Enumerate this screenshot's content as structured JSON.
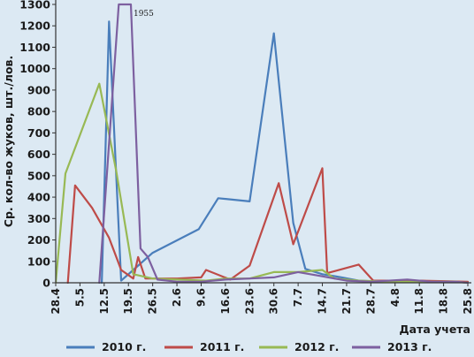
{
  "chart_data": {
    "type": "line",
    "categories": [
      "28.4",
      "5.5",
      "12.5",
      "19.5",
      "26.5",
      "2.6",
      "9.6",
      "16.6",
      "23.6",
      "30.6",
      "7.7",
      "14.7",
      "21.7",
      "28.7",
      "4.8",
      "11.8",
      "18.8",
      "25.8"
    ],
    "xlabel": "Дата учета",
    "ylabel": "Ср. кол-во жуков, шт./лов.",
    "ylim": [
      0,
      1300
    ],
    "yticks": [
      0,
      100,
      200,
      300,
      400,
      500,
      600,
      700,
      800,
      900,
      1000,
      1100,
      1200,
      1300
    ],
    "grid": false,
    "legend_position": "bottom",
    "annotations": [
      {
        "text": "1955",
        "x": 3.1,
        "y": 1250
      }
    ],
    "series": [
      {
        "name": "2010 г.",
        "color": "#4a7ebb",
        "points": [
          [
            1.9,
            0
          ],
          [
            2.2,
            1220
          ],
          [
            2.7,
            10
          ],
          [
            3.2,
            60
          ],
          [
            4.0,
            140
          ],
          [
            5.9,
            250
          ],
          [
            6.7,
            395
          ],
          [
            8.0,
            380
          ],
          [
            9.0,
            1165
          ],
          [
            9.8,
            280
          ],
          [
            10.3,
            65
          ],
          [
            11.0,
            40
          ],
          [
            11.8,
            25
          ],
          [
            12.5,
            10
          ],
          [
            13.5,
            5
          ],
          [
            14.3,
            5
          ],
          [
            15.0,
            10
          ],
          [
            15.7,
            5
          ],
          [
            16.5,
            5
          ]
        ]
      },
      {
        "name": "2011 г.",
        "color": "#be4b48",
        "points": [
          [
            0.5,
            0
          ],
          [
            0.8,
            455
          ],
          [
            1.5,
            350
          ],
          [
            2.2,
            210
          ],
          [
            2.7,
            60
          ],
          [
            3.2,
            20
          ],
          [
            3.4,
            120
          ],
          [
            3.7,
            20
          ],
          [
            5.0,
            20
          ],
          [
            6.0,
            25
          ],
          [
            6.2,
            60
          ],
          [
            7.2,
            15
          ],
          [
            8.0,
            80
          ],
          [
            9.2,
            465
          ],
          [
            9.8,
            180
          ],
          [
            11.0,
            535
          ],
          [
            11.2,
            45
          ],
          [
            12.5,
            85
          ],
          [
            13.1,
            10
          ],
          [
            15.0,
            10
          ],
          [
            17.0,
            5
          ]
        ]
      },
      {
        "name": "2012 г.",
        "color": "#98b954",
        "points": [
          [
            0,
            0
          ],
          [
            0.4,
            510
          ],
          [
            1.8,
            930
          ],
          [
            2.5,
            520
          ],
          [
            3.2,
            40
          ],
          [
            4.0,
            20
          ],
          [
            6.2,
            10
          ],
          [
            7.0,
            20
          ],
          [
            8.0,
            20
          ],
          [
            9.0,
            50
          ],
          [
            10.0,
            50
          ],
          [
            11.0,
            60
          ],
          [
            11.5,
            20
          ],
          [
            12.5,
            10
          ],
          [
            14.0,
            5
          ],
          [
            15.5,
            5
          ],
          [
            16.5,
            5
          ],
          [
            17.0,
            0
          ]
        ]
      },
      {
        "name": "2013 г.",
        "color": "#7d60a0",
        "points": [
          [
            1.8,
            0
          ],
          [
            2.6,
            1300
          ],
          [
            3.1,
            1300
          ],
          [
            3.5,
            160
          ],
          [
            3.8,
            120
          ],
          [
            4.2,
            15
          ],
          [
            5.0,
            5
          ],
          [
            6.0,
            5
          ],
          [
            7.0,
            15
          ],
          [
            8.0,
            20
          ],
          [
            9.0,
            25
          ],
          [
            10.0,
            50
          ],
          [
            11.0,
            30
          ],
          [
            12.0,
            10
          ],
          [
            13.0,
            5
          ],
          [
            14.5,
            15
          ],
          [
            15.5,
            5
          ],
          [
            16.5,
            5
          ],
          [
            17.0,
            0
          ]
        ]
      }
    ]
  }
}
